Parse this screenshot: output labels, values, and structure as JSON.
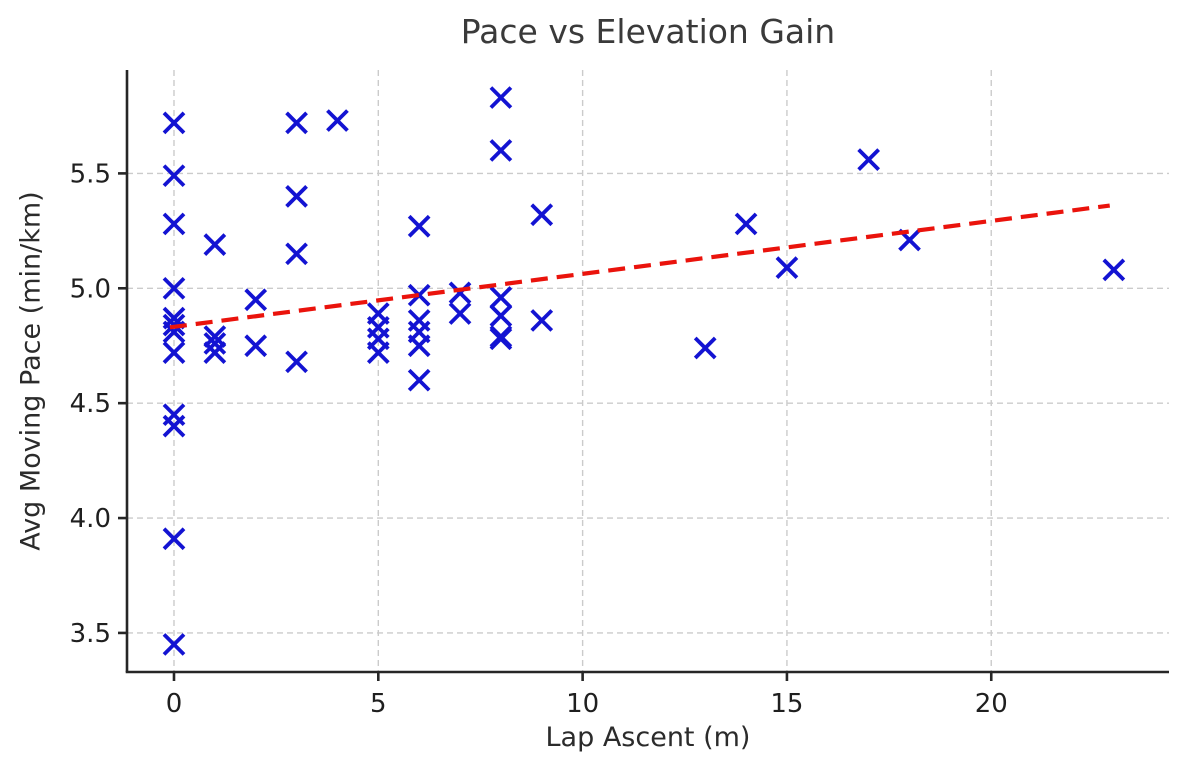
{
  "chart_data": {
    "type": "scatter",
    "title": "Pace vs Elevation Gain",
    "xlabel": "Lap Ascent (m)",
    "ylabel": "Avg Moving Pace (min/km)",
    "xlim": [
      -1.15,
      24.35
    ],
    "ylim": [
      3.33,
      5.95
    ],
    "x_ticks": [
      "0",
      "5",
      "10",
      "15",
      "20"
    ],
    "x_tick_values": [
      0,
      5,
      10,
      15,
      20
    ],
    "y_ticks": [
      "3.5",
      "4.0",
      "4.5",
      "5.0",
      "5.5"
    ],
    "y_tick_values": [
      3.5,
      4.0,
      4.5,
      5.0,
      5.5
    ],
    "grid": true,
    "legend": "none",
    "series": [
      {
        "name": "laps",
        "marker": "x",
        "color": "#1313d2",
        "points": [
          [
            0,
            5.72
          ],
          [
            0,
            5.49
          ],
          [
            0,
            5.28
          ],
          [
            0,
            5.0
          ],
          [
            0,
            4.87
          ],
          [
            0,
            4.84
          ],
          [
            0,
            4.81
          ],
          [
            0,
            4.72
          ],
          [
            0,
            4.45
          ],
          [
            0,
            4.4
          ],
          [
            0,
            3.91
          ],
          [
            0,
            3.45
          ],
          [
            1,
            5.19
          ],
          [
            1,
            4.79
          ],
          [
            1,
            4.76
          ],
          [
            1,
            4.72
          ],
          [
            2,
            4.95
          ],
          [
            2,
            4.75
          ],
          [
            3,
            5.72
          ],
          [
            3,
            5.4
          ],
          [
            3,
            5.15
          ],
          [
            3,
            4.68
          ],
          [
            4,
            5.73
          ],
          [
            5,
            4.89
          ],
          [
            5,
            4.83
          ],
          [
            5,
            4.78
          ],
          [
            5,
            4.72
          ],
          [
            6,
            5.27
          ],
          [
            6,
            4.97
          ],
          [
            6,
            4.86
          ],
          [
            6,
            4.81
          ],
          [
            6,
            4.75
          ],
          [
            6,
            4.6
          ],
          [
            7,
            4.98
          ],
          [
            7,
            4.89
          ],
          [
            8,
            5.83
          ],
          [
            8,
            5.6
          ],
          [
            8,
            4.96
          ],
          [
            8,
            4.88
          ],
          [
            8,
            4.79
          ],
          [
            8,
            4.78
          ],
          [
            9,
            5.32
          ],
          [
            9,
            4.86
          ],
          [
            13,
            4.74
          ],
          [
            14,
            5.28
          ],
          [
            15,
            5.09
          ],
          [
            17,
            5.56
          ],
          [
            18,
            5.21
          ],
          [
            23,
            5.08
          ]
        ]
      }
    ],
    "trendline": {
      "style": "dashed",
      "color": "#ea130c",
      "from": [
        -0.1,
        4.83
      ],
      "to": [
        22.9,
        5.36
      ]
    },
    "grid_color": "#cbcbcb",
    "axis_color": "#262626",
    "tick_label_color": "#1f1f1f",
    "title_color": "#3a3a3a"
  }
}
